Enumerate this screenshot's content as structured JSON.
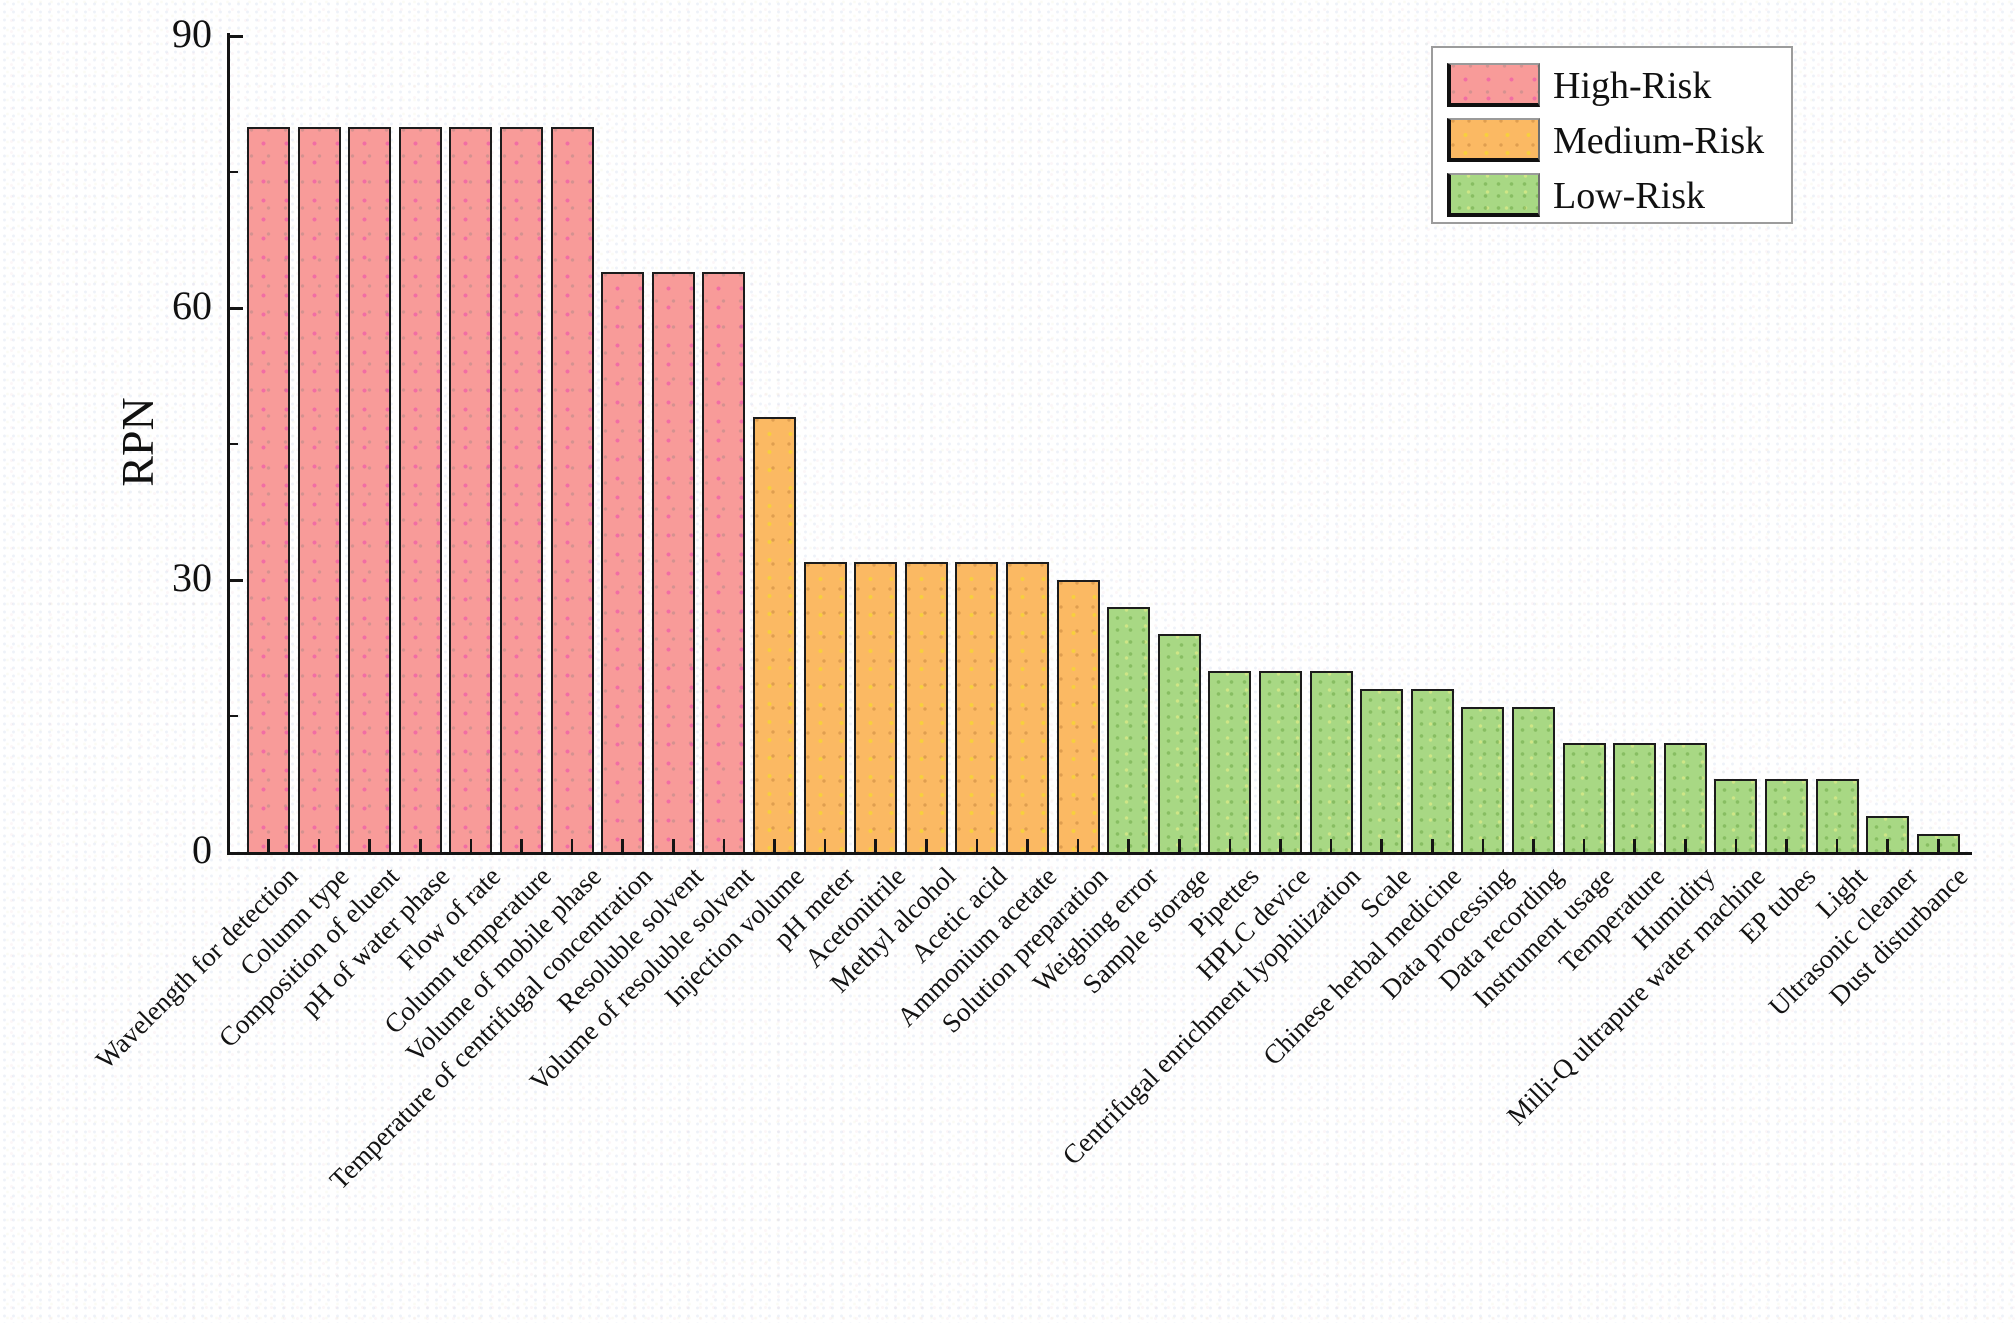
{
  "chart_data": {
    "type": "bar",
    "title": "",
    "xlabel": "",
    "ylabel": "RPN",
    "ylim": [
      0,
      90
    ],
    "yticks_major": [
      0,
      30,
      60,
      90
    ],
    "yticks_minor": [
      15,
      45,
      75
    ],
    "grid": "off",
    "legend_position": "top-right",
    "legend": [
      {
        "key": "high",
        "label": "High-Risk",
        "color": "#F89B99"
      },
      {
        "key": "medium",
        "label": "Medium-Risk",
        "color": "#FBB963"
      },
      {
        "key": "low",
        "label": "Low-Risk",
        "color": "#A8D884"
      }
    ],
    "categories": [
      "Wavelength for detection",
      "Column type",
      "Composition of eluent",
      "pH of water phase",
      "Flow of rate",
      "Column temperature",
      "Volume of mobile phase",
      "Temperature of centrifugal concentration",
      "Resoluble solvent",
      "Volume of resoluble solvent",
      "Injection volume",
      "pH meter",
      "Acetonitrile",
      "Methyl alcohol",
      "Acetic acid",
      "Ammonium acetate",
      "Solution preparation",
      "Weighing error",
      "Sample storage",
      "Pipettes",
      "HPLC device",
      "Centrifugal enrichment lyophilization",
      "Scale",
      "Chinese herbal medicine",
      "Data processing",
      "Data recording",
      "Instrument usage",
      "Temperature",
      "Humidity",
      "Milli-Q ultrapure water machine",
      "EP tubes",
      "Light",
      "Ultrasonic cleaner",
      "Dust disturbance"
    ],
    "values": [
      80,
      80,
      80,
      80,
      80,
      80,
      80,
      64,
      64,
      64,
      48,
      32,
      32,
      32,
      32,
      32,
      30,
      27,
      24,
      20,
      20,
      20,
      18,
      18,
      16,
      16,
      12,
      12,
      12,
      8,
      8,
      8,
      4,
      2
    ],
    "risks": [
      "high",
      "high",
      "high",
      "high",
      "high",
      "high",
      "high",
      "high",
      "high",
      "high",
      "medium",
      "medium",
      "medium",
      "medium",
      "medium",
      "medium",
      "medium",
      "low",
      "low",
      "low",
      "low",
      "low",
      "low",
      "low",
      "low",
      "low",
      "low",
      "low",
      "low",
      "low",
      "low",
      "low",
      "low",
      "low"
    ]
  }
}
